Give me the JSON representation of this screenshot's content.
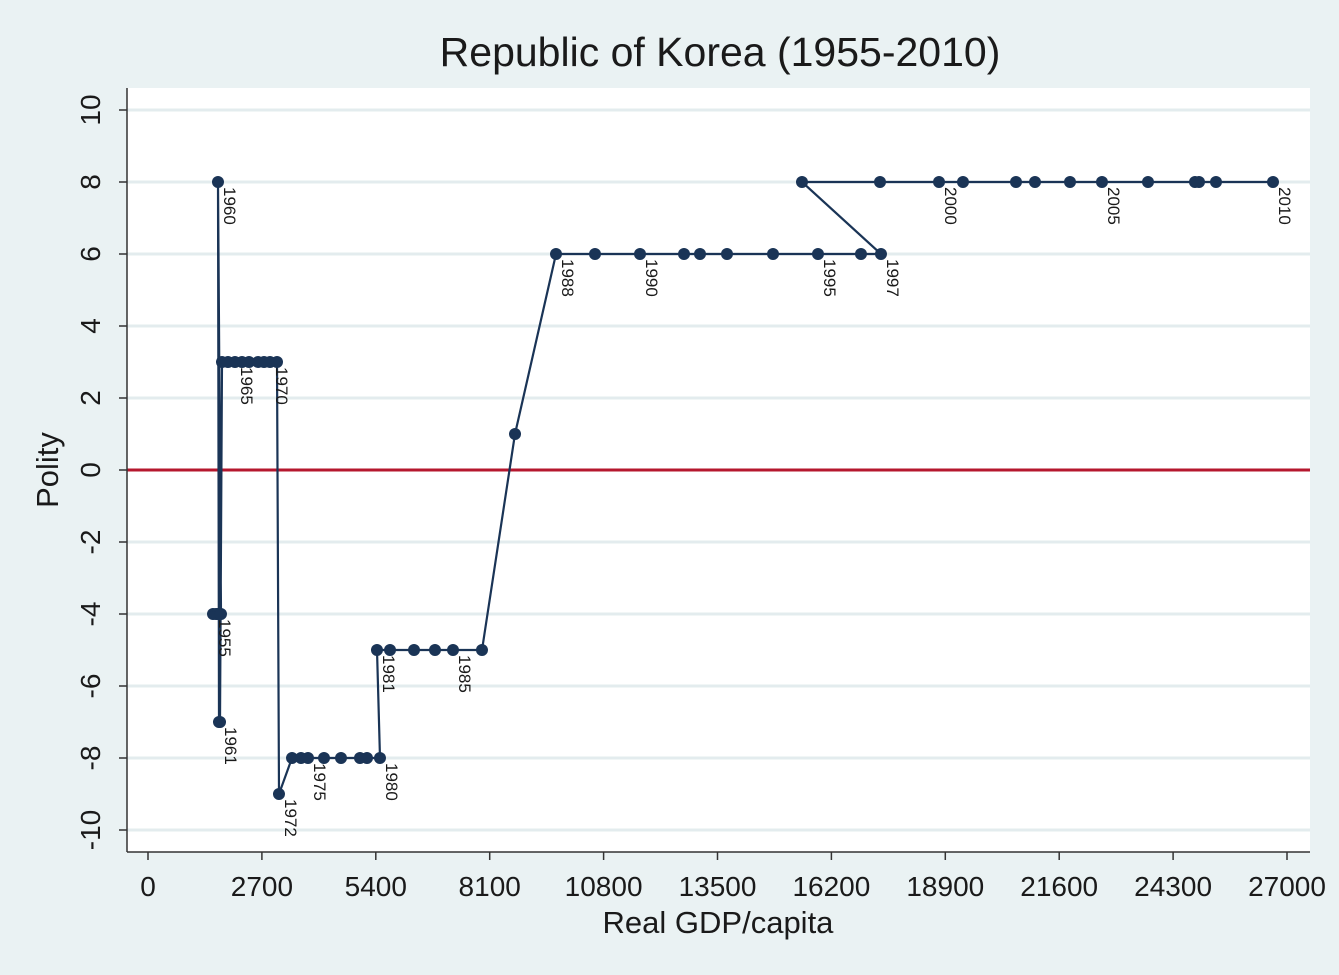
{
  "chart_data": {
    "type": "line",
    "title": "Republic of Korea (1955-2010)",
    "xlabel": "Real GDP/capita",
    "ylabel": "Polity",
    "xlim": [
      -500,
      27500
    ],
    "ylim": [
      -10.6,
      10.6
    ],
    "xticks": [
      0,
      2700,
      5400,
      8100,
      10800,
      13500,
      16200,
      18900,
      21600,
      24300,
      27000
    ],
    "yticks": [
      -10,
      -8,
      -6,
      -4,
      -2,
      0,
      2,
      4,
      6,
      8,
      10
    ],
    "grid": true,
    "reference_line": {
      "y": 0,
      "color": "#b5172e"
    },
    "series_color": "#1a3456",
    "points": [
      {
        "year": 1955,
        "x": 1541,
        "y": -4,
        "label": "1955"
      },
      {
        "year": 1956,
        "x": 1612,
        "y": -4
      },
      {
        "year": 1957,
        "x": 1659,
        "y": -4
      },
      {
        "year": 1958,
        "x": 1707,
        "y": -4
      },
      {
        "year": 1959,
        "x": 1730,
        "y": -4
      },
      {
        "year": 1960,
        "x": 1659,
        "y": 8,
        "label": "1960"
      },
      {
        "year": 1961,
        "x": 1683,
        "y": -7,
        "label": "1961"
      },
      {
        "year": 1962,
        "x": 1707,
        "y": -7
      },
      {
        "year": 1963,
        "x": 1754,
        "y": 3
      },
      {
        "year": 1964,
        "x": 1896,
        "y": 3
      },
      {
        "year": 1965,
        "x": 2062,
        "y": 3,
        "label": "1965"
      },
      {
        "year": 1966,
        "x": 2228,
        "y": 3
      },
      {
        "year": 1967,
        "x": 2394,
        "y": 3
      },
      {
        "year": 1968,
        "x": 2607,
        "y": 3
      },
      {
        "year": 1969,
        "x": 2750,
        "y": 3
      },
      {
        "year": 1970,
        "x": 2892,
        "y": 3,
        "label": "1970"
      },
      {
        "year": 1971,
        "x": 3058,
        "y": 3
      },
      {
        "year": 1972,
        "x": 3105,
        "y": -9,
        "label": "1972"
      },
      {
        "year": 1973,
        "x": 3414,
        "y": -8
      },
      {
        "year": 1974,
        "x": 3627,
        "y": -8
      },
      {
        "year": 1975,
        "x": 3793,
        "y": -8,
        "label": "1975"
      },
      {
        "year": 1976,
        "x": 4172,
        "y": -8
      },
      {
        "year": 1977,
        "x": 4575,
        "y": -8
      },
      {
        "year": 1978,
        "x": 5025,
        "y": -8
      },
      {
        "year": 1979,
        "x": 5191,
        "y": -8
      },
      {
        "year": 1980,
        "x": 5499,
        "y": -8,
        "label": "1980"
      },
      {
        "year": 1981,
        "x": 5428,
        "y": -5,
        "label": "1981"
      },
      {
        "year": 1982,
        "x": 5737,
        "y": -5
      },
      {
        "year": 1983,
        "x": 6306,
        "y": -5
      },
      {
        "year": 1984,
        "x": 6803,
        "y": -5
      },
      {
        "year": 1985,
        "x": 7230,
        "y": -5,
        "label": "1985"
      },
      {
        "year": 1986,
        "x": 7917,
        "y": -5
      },
      {
        "year": 1987,
        "x": 8700,
        "y": 1
      },
      {
        "year": 1988,
        "x": 9672,
        "y": 6,
        "label": "1988"
      },
      {
        "year": 1989,
        "x": 10596,
        "y": 6
      },
      {
        "year": 1990,
        "x": 11663,
        "y": 6,
        "label": "1990"
      },
      {
        "year": 1991,
        "x": 12706,
        "y": 6
      },
      {
        "year": 1992,
        "x": 13085,
        "y": 6
      },
      {
        "year": 1993,
        "x": 13725,
        "y": 6
      },
      {
        "year": 1994,
        "x": 14816,
        "y": 6
      },
      {
        "year": 1995,
        "x": 15882,
        "y": 6,
        "label": "1995"
      },
      {
        "year": 1996,
        "x": 16901,
        "y": 6
      },
      {
        "year": 1997,
        "x": 17375,
        "y": 6,
        "label": "1997"
      },
      {
        "year": 1998,
        "x": 15503,
        "y": 8
      },
      {
        "year": 1999,
        "x": 17352,
        "y": 8
      },
      {
        "year": 2000,
        "x": 18751,
        "y": 8,
        "label": "2000"
      },
      {
        "year": 2001,
        "x": 19319,
        "y": 8
      },
      {
        "year": 2002,
        "x": 20576,
        "y": 8
      },
      {
        "year": 2003,
        "x": 21026,
        "y": 8
      },
      {
        "year": 2004,
        "x": 21856,
        "y": 8
      },
      {
        "year": 2005,
        "x": 22614,
        "y": 8,
        "label": "2005"
      },
      {
        "year": 2006,
        "x": 23705,
        "y": 8
      },
      {
        "year": 2007,
        "x": 24819,
        "y": 8
      },
      {
        "year": 2008,
        "x": 24914,
        "y": 8
      },
      {
        "year": 2009,
        "x": 25317,
        "y": 8
      },
      {
        "year": 2010,
        "x": 26668,
        "y": 8,
        "label": "2010"
      }
    ]
  }
}
